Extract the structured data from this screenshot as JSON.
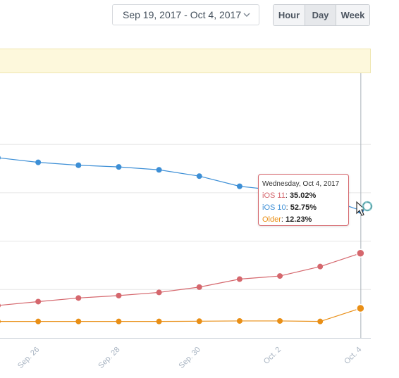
{
  "toolbar": {
    "date_range": "Sep 19, 2017 - Oct 4, 2017",
    "granularity": [
      "Hour",
      "Day",
      "Week"
    ],
    "selected_granularity": "Day"
  },
  "tooltip": {
    "date": "Wednesday, Oct 4, 2017",
    "rows": [
      {
        "name": "iOS 11",
        "sep": ": ",
        "value": "35.02%"
      },
      {
        "name": "iOS 10",
        "sep": ": ",
        "value": "52.75%"
      },
      {
        "name": "Older",
        "sep": ": ",
        "value": "12.23%"
      }
    ]
  },
  "colors": {
    "ios11": "#d5676d",
    "ios10": "#3d8fd6",
    "older": "#e98f16",
    "banner": "#fdf8dc",
    "grid": "#e6e6e6",
    "axis": "#a7b3c1"
  },
  "chart_data": {
    "type": "line",
    "x": [
      "Sep 25",
      "Sep 26",
      "Sep 27",
      "Sep 28",
      "Sep 29",
      "Sep 30",
      "Oct 1",
      "Oct 2",
      "Oct 3",
      "Oct 4"
    ],
    "x_tick_labels": [
      "Sep. 26",
      "Sep. 28",
      "Sep. 30",
      "Oct. 2",
      "Oct. 4"
    ],
    "series": [
      {
        "name": "iOS 10",
        "color": "#3d8fd6",
        "values": [
          74.5,
          72.6,
          71.4,
          70.7,
          69.5,
          66.9,
          62.7,
          60.9,
          58.4,
          52.75
        ]
      },
      {
        "name": "iOS 11",
        "color": "#d5676d",
        "values": [
          13.4,
          15.0,
          16.5,
          17.5,
          18.8,
          21.0,
          24.3,
          25.6,
          29.5,
          35.02
        ]
      },
      {
        "name": "Older",
        "color": "#e98f16",
        "values": [
          6.8,
          6.8,
          6.8,
          6.8,
          6.8,
          6.9,
          7.0,
          7.0,
          6.8,
          12.23
        ]
      }
    ],
    "ylim": [
      0,
      100
    ],
    "grid": true,
    "selected_point": "Oct 4"
  }
}
